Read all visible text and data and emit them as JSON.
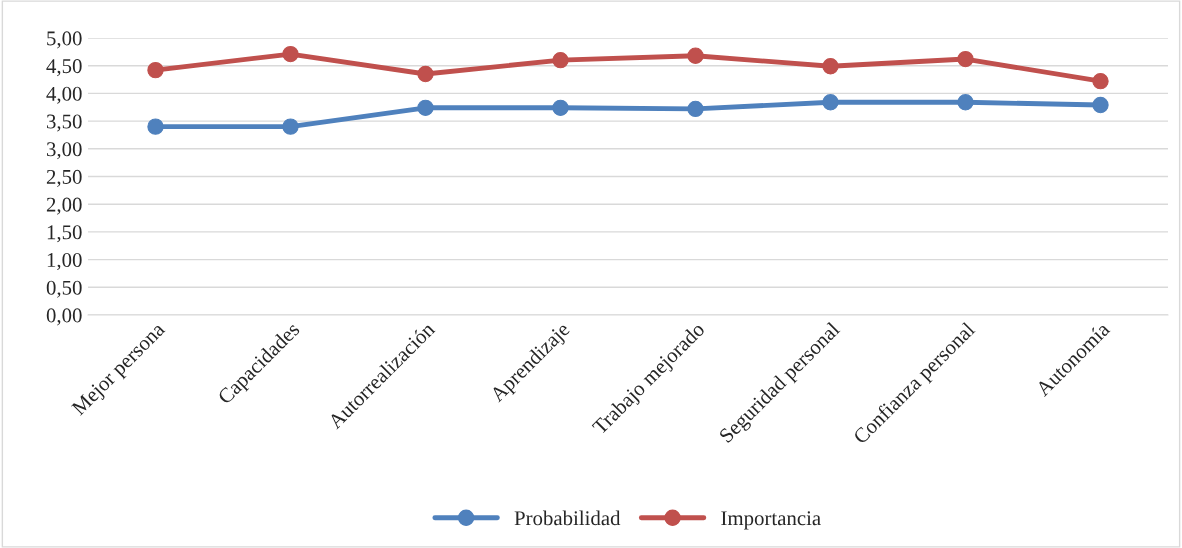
{
  "chart_data": {
    "type": "line",
    "categories": [
      "Mejor persona",
      "Capacidades",
      "Autorrealización",
      "Aprendizaje",
      "Trabajo mejorado",
      "Seguridad personal",
      "Confianza personal",
      "Autonomía"
    ],
    "series": [
      {
        "name": "Probabilidad",
        "color": "#4f81bd",
        "values": [
          3.4,
          3.4,
          3.74,
          3.74,
          3.72,
          3.84,
          3.84,
          3.79
        ]
      },
      {
        "name": "Importancia",
        "color": "#c0504d",
        "values": [
          4.42,
          4.71,
          4.35,
          4.6,
          4.68,
          4.49,
          4.62,
          4.22
        ]
      }
    ],
    "ylim": [
      0,
      5
    ],
    "yticks": [
      {
        "value": 0,
        "label": "0,00"
      },
      {
        "value": 0.5,
        "label": "0,50"
      },
      {
        "value": 1,
        "label": "1,00"
      },
      {
        "value": 1.5,
        "label": "1,50"
      },
      {
        "value": 2,
        "label": "2,00"
      },
      {
        "value": 2.5,
        "label": "2,50"
      },
      {
        "value": 3,
        "label": "3,00"
      },
      {
        "value": 3.5,
        "label": "3,50"
      },
      {
        "value": 4,
        "label": "4,00"
      },
      {
        "value": 4.5,
        "label": "4,50"
      },
      {
        "value": 5,
        "label": "5,00"
      }
    ],
    "grid": "y",
    "legend": "bottom",
    "marker": "circle",
    "line_style": "solid"
  }
}
